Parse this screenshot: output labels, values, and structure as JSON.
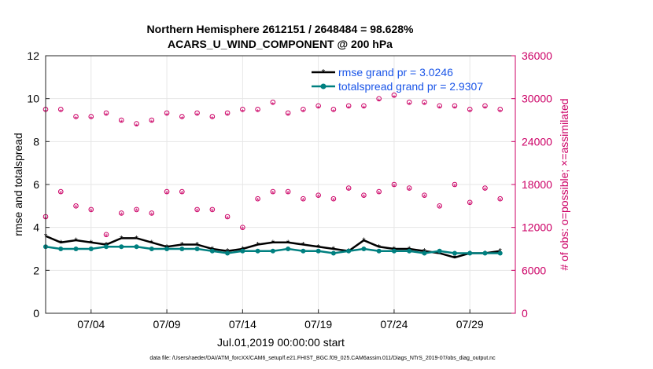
{
  "figure": {
    "title_line1": "Northern Hemisphere 2612151 / 2648484 = 98.628%",
    "title_line2": "ACARS_U_WIND_COMPONENT @ 200 hPa",
    "xlabel": "Jul.01,2019 00:00:00 start",
    "ylabel_left": "rmse and totalspread",
    "ylabel_right": "# of obs: o=possible; ×=assimilated",
    "footer": "data file: /Users/raeder/DAI/ATM_forcXX/CAM6_setup/f.e21.FHIST_BGC.f09_025.CAM6assim.011/Diags_NTrS_2019-07/obs_diag_output.nc"
  },
  "colors": {
    "rmse": "#000000",
    "spread": "#008080",
    "obs": "#cc0066",
    "legend_text": "#1a55e8",
    "grid": "#e6e6e6"
  },
  "chart_data": {
    "type": "line",
    "title": "Northern Hemisphere 2612151 / 2648484 = 98.628%",
    "subtitle": "ACARS_U_WIND_COMPONENT @ 200 hPa",
    "xlabel": "Jul.01,2019 00:00:00 start",
    "ylabel": "rmse and totalspread",
    "y2label": "# of obs: o=possible; ×=assimilated",
    "xlim_days": [
      1,
      32
    ],
    "ylim": [
      0,
      12
    ],
    "y2lim": [
      0,
      36000
    ],
    "x_ticks": [
      "07/04",
      "07/09",
      "07/14",
      "07/19",
      "07/24",
      "07/29"
    ],
    "y_ticks": [
      "0",
      "2",
      "4",
      "6",
      "8",
      "10",
      "12"
    ],
    "y2_ticks": [
      "0",
      "6000",
      "12000",
      "18000",
      "24000",
      "30000",
      "36000"
    ],
    "grid": true,
    "legend_position": "top-right",
    "legend": [
      "rmse grand pr = 3.0246",
      "totalspread grand pr = 2.9307"
    ],
    "series": [
      {
        "name": "rmse grand pr = 3.0246",
        "x": [
          "07/01",
          "07/02",
          "07/03",
          "07/04",
          "07/05",
          "07/06",
          "07/07",
          "07/08",
          "07/09",
          "07/10",
          "07/11",
          "07/12",
          "07/13",
          "07/14",
          "07/15",
          "07/16",
          "07/17",
          "07/18",
          "07/19",
          "07/20",
          "07/21",
          "07/22",
          "07/23",
          "07/24",
          "07/25",
          "07/26",
          "07/27",
          "07/28",
          "07/29",
          "07/30",
          "07/31"
        ],
        "values": [
          3.6,
          3.3,
          3.4,
          3.3,
          3.2,
          3.5,
          3.5,
          3.3,
          3.1,
          3.2,
          3.2,
          3.0,
          2.9,
          3.0,
          3.2,
          3.3,
          3.3,
          3.2,
          3.1,
          3.0,
          2.9,
          3.4,
          3.1,
          3.0,
          3.0,
          2.9,
          2.8,
          2.6,
          2.8,
          2.8,
          2.9
        ]
      },
      {
        "name": "totalspread grand pr = 2.9307",
        "x": [
          "07/01",
          "07/02",
          "07/03",
          "07/04",
          "07/05",
          "07/06",
          "07/07",
          "07/08",
          "07/09",
          "07/10",
          "07/11",
          "07/12",
          "07/13",
          "07/14",
          "07/15",
          "07/16",
          "07/17",
          "07/18",
          "07/19",
          "07/20",
          "07/21",
          "07/22",
          "07/23",
          "07/24",
          "07/25",
          "07/26",
          "07/27",
          "07/28",
          "07/29",
          "07/30",
          "07/31"
        ],
        "values": [
          3.1,
          3.0,
          3.0,
          3.0,
          3.1,
          3.1,
          3.1,
          3.0,
          3.0,
          3.0,
          3.0,
          2.9,
          2.8,
          2.9,
          2.9,
          2.9,
          3.0,
          2.9,
          2.9,
          2.8,
          2.9,
          3.0,
          2.9,
          2.9,
          2.9,
          2.8,
          2.9,
          2.8,
          2.8,
          2.8,
          2.8
        ]
      },
      {
        "name": "possible",
        "axis": "right",
        "x": [
          "07/01",
          "07/01",
          "07/02",
          "07/02",
          "07/03",
          "07/03",
          "07/04",
          "07/04",
          "07/05",
          "07/05",
          "07/06",
          "07/06",
          "07/07",
          "07/07",
          "07/08",
          "07/08",
          "07/09",
          "07/09",
          "07/10",
          "07/10",
          "07/11",
          "07/11",
          "07/12",
          "07/12",
          "07/13",
          "07/13",
          "07/14",
          "07/14",
          "07/15",
          "07/15",
          "07/16",
          "07/16",
          "07/17",
          "07/17",
          "07/18",
          "07/18",
          "07/19",
          "07/19",
          "07/20",
          "07/20",
          "07/21",
          "07/21",
          "07/22",
          "07/22",
          "07/23",
          "07/23",
          "07/24",
          "07/24",
          "07/25",
          "07/25",
          "07/26",
          "07/26",
          "07/27",
          "07/27",
          "07/28",
          "07/28",
          "07/29",
          "07/29",
          "07/30",
          "07/30",
          "07/31",
          "07/31"
        ],
        "values": [
          13500,
          28500,
          17000,
          28500,
          15000,
          27500,
          14500,
          27500,
          11000,
          28000,
          14000,
          27000,
          14500,
          26500,
          14000,
          27000,
          17000,
          28000,
          17000,
          27500,
          14500,
          28000,
          14500,
          27500,
          13500,
          28000,
          12000,
          28500,
          16000,
          28500,
          17000,
          29500,
          17000,
          28000,
          16000,
          28500,
          16500,
          29000,
          16000,
          28500,
          17500,
          29000,
          16500,
          29000,
          17000,
          30000,
          18000,
          30500,
          17500,
          29500,
          16500,
          29500,
          15000,
          29000,
          18000,
          29000,
          15500,
          28500,
          17500,
          29000,
          16000,
          28500
        ]
      },
      {
        "name": "assimilated",
        "axis": "right",
        "x": [
          "07/01",
          "07/01",
          "07/02",
          "07/02",
          "07/03",
          "07/03",
          "07/04",
          "07/04",
          "07/05",
          "07/05",
          "07/06",
          "07/06",
          "07/07",
          "07/07",
          "07/08",
          "07/08",
          "07/09",
          "07/09",
          "07/10",
          "07/10",
          "07/11",
          "07/11",
          "07/12",
          "07/12",
          "07/13",
          "07/13",
          "07/14",
          "07/14",
          "07/15",
          "07/15",
          "07/16",
          "07/16",
          "07/17",
          "07/17",
          "07/18",
          "07/18",
          "07/19",
          "07/19",
          "07/20",
          "07/20",
          "07/21",
          "07/21",
          "07/22",
          "07/22",
          "07/23",
          "07/23",
          "07/24",
          "07/24",
          "07/25",
          "07/25",
          "07/26",
          "07/26",
          "07/27",
          "07/27",
          "07/28",
          "07/28",
          "07/29",
          "07/29",
          "07/30",
          "07/30",
          "07/31",
          "07/31"
        ],
        "values": [
          13300,
          28200,
          16800,
          28200,
          14800,
          27200,
          14300,
          27200,
          10800,
          27700,
          13800,
          26700,
          14300,
          26200,
          13800,
          26700,
          16800,
          27700,
          16800,
          27200,
          14300,
          27700,
          14300,
          27200,
          13300,
          27700,
          11800,
          28200,
          15800,
          28200,
          16800,
          29200,
          16800,
          27700,
          15800,
          28200,
          16300,
          28700,
          15800,
          28200,
          17300,
          28700,
          16300,
          28700,
          16800,
          29700,
          17800,
          30200,
          17300,
          29200,
          16300,
          29200,
          14800,
          28700,
          17800,
          28700,
          15300,
          28200,
          17300,
          28700,
          15800,
          28200
        ]
      }
    ]
  }
}
